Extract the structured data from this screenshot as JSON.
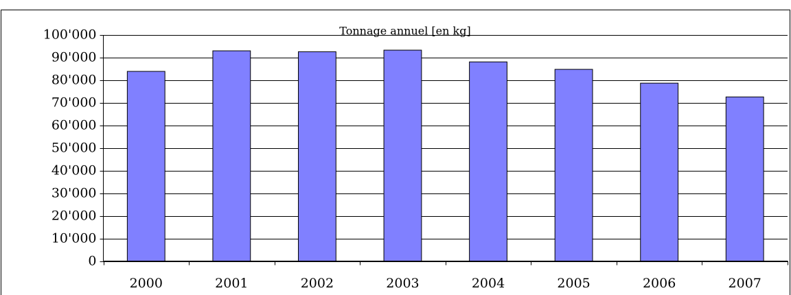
{
  "chart_data": {
    "type": "bar",
    "title": "Tonnage annuel [en kg]",
    "categories": [
      "2000",
      "2001",
      "2002",
      "2003",
      "2004",
      "2005",
      "2006",
      "2007"
    ],
    "values": [
      83900,
      93000,
      92600,
      93300,
      88100,
      84800,
      78700,
      72600
    ],
    "color": "#8080ff",
    "ylim": [
      0,
      100000
    ],
    "yticks": [
      0,
      {
        "value": 10000,
        "label": "10'000"
      },
      {
        "value": 20000,
        "label": "20'000"
      },
      {
        "value": 30000,
        "label": "30'000"
      },
      {
        "value": 40000,
        "label": "40'000"
      },
      {
        "value": 50000,
        "label": "50'000"
      },
      {
        "value": 60000,
        "label": "60'000"
      },
      {
        "value": 70000,
        "label": "70'000"
      },
      {
        "value": 80000,
        "label": "80'000"
      },
      {
        "value": 90000,
        "label": "90'000"
      },
      {
        "value": 100000,
        "label": "100'000"
      }
    ],
    "grid": true
  }
}
